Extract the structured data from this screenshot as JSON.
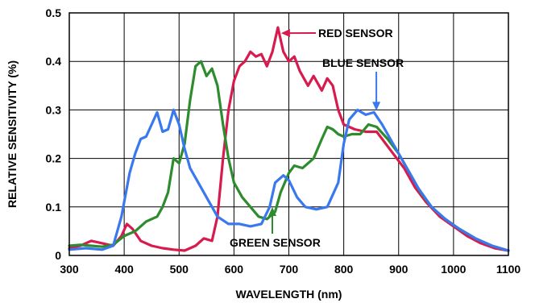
{
  "chart_data": {
    "type": "line",
    "xlabel": "WAVELENGTH (nm)",
    "ylabel": "RELATIVE SENSITIVITY (%)",
    "xlim": [
      300,
      1100
    ],
    "ylim": [
      0,
      0.5
    ],
    "x_ticks": [
      "300",
      "400",
      "500",
      "600",
      "700",
      "800",
      "900",
      "1000",
      "1100"
    ],
    "y_ticks": [
      "0",
      "0.1",
      "0.2",
      "0.3",
      "0.4",
      "0.5"
    ],
    "grid": true,
    "series": [
      {
        "name": "RED SENSOR",
        "color": "#d81b4f",
        "points": [
          [
            300,
            0.015
          ],
          [
            320,
            0.02
          ],
          [
            340,
            0.03
          ],
          [
            360,
            0.025
          ],
          [
            380,
            0.02
          ],
          [
            395,
            0.04
          ],
          [
            405,
            0.065
          ],
          [
            415,
            0.055
          ],
          [
            430,
            0.03
          ],
          [
            450,
            0.02
          ],
          [
            470,
            0.015
          ],
          [
            490,
            0.012
          ],
          [
            510,
            0.01
          ],
          [
            530,
            0.02
          ],
          [
            545,
            0.035
          ],
          [
            560,
            0.03
          ],
          [
            570,
            0.08
          ],
          [
            580,
            0.2
          ],
          [
            590,
            0.3
          ],
          [
            600,
            0.36
          ],
          [
            610,
            0.39
          ],
          [
            620,
            0.4
          ],
          [
            630,
            0.42
          ],
          [
            640,
            0.41
          ],
          [
            650,
            0.415
          ],
          [
            660,
            0.39
          ],
          [
            670,
            0.42
          ],
          [
            680,
            0.47
          ],
          [
            690,
            0.42
          ],
          [
            700,
            0.4
          ],
          [
            710,
            0.41
          ],
          [
            720,
            0.38
          ],
          [
            735,
            0.35
          ],
          [
            745,
            0.37
          ],
          [
            760,
            0.34
          ],
          [
            770,
            0.365
          ],
          [
            780,
            0.35
          ],
          [
            790,
            0.3
          ],
          [
            800,
            0.27
          ],
          [
            820,
            0.26
          ],
          [
            840,
            0.255
          ],
          [
            860,
            0.255
          ],
          [
            870,
            0.24
          ],
          [
            890,
            0.21
          ],
          [
            910,
            0.18
          ],
          [
            930,
            0.14
          ],
          [
            950,
            0.11
          ],
          [
            975,
            0.08
          ],
          [
            1000,
            0.06
          ],
          [
            1025,
            0.04
          ],
          [
            1050,
            0.025
          ],
          [
            1075,
            0.015
          ],
          [
            1100,
            0.01
          ]
        ]
      },
      {
        "name": "GREEN SENSOR",
        "color": "#2e8b2e",
        "points": [
          [
            300,
            0.02
          ],
          [
            320,
            0.022
          ],
          [
            340,
            0.02
          ],
          [
            360,
            0.018
          ],
          [
            380,
            0.022
          ],
          [
            400,
            0.04
          ],
          [
            420,
            0.05
          ],
          [
            440,
            0.07
          ],
          [
            460,
            0.08
          ],
          [
            470,
            0.1
          ],
          [
            480,
            0.13
          ],
          [
            490,
            0.2
          ],
          [
            500,
            0.19
          ],
          [
            510,
            0.23
          ],
          [
            520,
            0.32
          ],
          [
            530,
            0.39
          ],
          [
            540,
            0.4
          ],
          [
            550,
            0.37
          ],
          [
            560,
            0.385
          ],
          [
            570,
            0.35
          ],
          [
            580,
            0.27
          ],
          [
            590,
            0.2
          ],
          [
            600,
            0.15
          ],
          [
            615,
            0.12
          ],
          [
            630,
            0.1
          ],
          [
            645,
            0.08
          ],
          [
            660,
            0.075
          ],
          [
            675,
            0.09
          ],
          [
            685,
            0.13
          ],
          [
            700,
            0.17
          ],
          [
            710,
            0.185
          ],
          [
            725,
            0.18
          ],
          [
            745,
            0.2
          ],
          [
            760,
            0.24
          ],
          [
            770,
            0.265
          ],
          [
            780,
            0.26
          ],
          [
            790,
            0.25
          ],
          [
            800,
            0.245
          ],
          [
            815,
            0.25
          ],
          [
            830,
            0.25
          ],
          [
            845,
            0.27
          ],
          [
            860,
            0.265
          ],
          [
            880,
            0.24
          ],
          [
            900,
            0.21
          ],
          [
            920,
            0.17
          ],
          [
            940,
            0.13
          ],
          [
            960,
            0.1
          ],
          [
            985,
            0.075
          ],
          [
            1010,
            0.055
          ],
          [
            1040,
            0.035
          ],
          [
            1070,
            0.02
          ],
          [
            1100,
            0.01
          ]
        ]
      },
      {
        "name": "BLUE SENSOR",
        "color": "#3a78ee",
        "points": [
          [
            300,
            0.012
          ],
          [
            330,
            0.015
          ],
          [
            360,
            0.012
          ],
          [
            380,
            0.02
          ],
          [
            395,
            0.08
          ],
          [
            410,
            0.17
          ],
          [
            420,
            0.21
          ],
          [
            430,
            0.24
          ],
          [
            440,
            0.245
          ],
          [
            450,
            0.27
          ],
          [
            460,
            0.295
          ],
          [
            470,
            0.255
          ],
          [
            480,
            0.26
          ],
          [
            490,
            0.3
          ],
          [
            500,
            0.27
          ],
          [
            510,
            0.22
          ],
          [
            520,
            0.18
          ],
          [
            530,
            0.16
          ],
          [
            540,
            0.14
          ],
          [
            555,
            0.11
          ],
          [
            570,
            0.08
          ],
          [
            590,
            0.065
          ],
          [
            610,
            0.065
          ],
          [
            630,
            0.06
          ],
          [
            650,
            0.065
          ],
          [
            665,
            0.1
          ],
          [
            675,
            0.15
          ],
          [
            690,
            0.165
          ],
          [
            700,
            0.155
          ],
          [
            715,
            0.12
          ],
          [
            730,
            0.1
          ],
          [
            750,
            0.095
          ],
          [
            770,
            0.1
          ],
          [
            790,
            0.15
          ],
          [
            800,
            0.23
          ],
          [
            810,
            0.28
          ],
          [
            825,
            0.3
          ],
          [
            840,
            0.29
          ],
          [
            855,
            0.295
          ],
          [
            870,
            0.27
          ],
          [
            890,
            0.23
          ],
          [
            910,
            0.19
          ],
          [
            935,
            0.14
          ],
          [
            960,
            0.1
          ],
          [
            985,
            0.075
          ],
          [
            1010,
            0.055
          ],
          [
            1040,
            0.035
          ],
          [
            1070,
            0.02
          ],
          [
            1100,
            0.01
          ]
        ]
      }
    ],
    "annotations": [
      {
        "text": "RED SENSOR",
        "series": "RED SENSOR",
        "arrow_to": [
          680,
          0.465
        ]
      },
      {
        "text": "BLUE SENSOR",
        "series": "BLUE SENSOR",
        "arrow_to": [
          855,
          0.295
        ]
      },
      {
        "text": "GREEN SENSOR",
        "series": "GREEN SENSOR",
        "arrow_to": [
          660,
          0.075
        ]
      }
    ]
  }
}
